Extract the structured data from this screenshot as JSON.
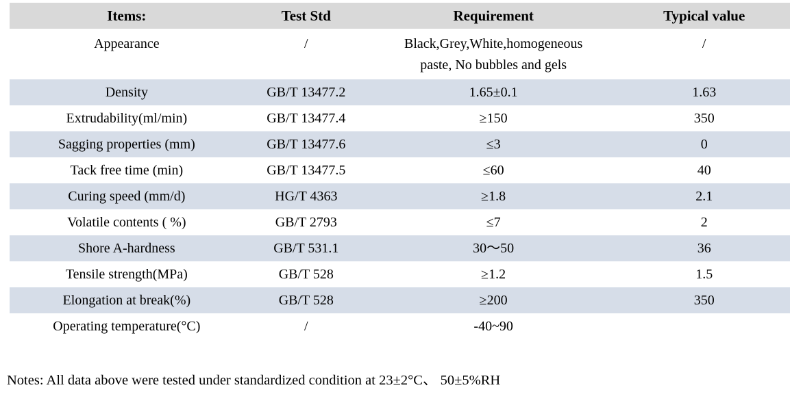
{
  "table": {
    "columns": [
      "Items:",
      "Test Std",
      "Requirement",
      "Typical value"
    ],
    "rows": [
      {
        "item": "Appearance",
        "test_std": "/",
        "requirement": "Black,Grey,White,homogeneous\npaste, No bubbles and gels",
        "typical_value": "/"
      },
      {
        "item": "Density",
        "test_std": "GB/T 13477.2",
        "requirement": "1.65±0.1",
        "typical_value": "1.63"
      },
      {
        "item": "Extrudability(ml/min)",
        "test_std": "GB/T 13477.4",
        "requirement": "≥150",
        "typical_value": "350"
      },
      {
        "item": "Sagging properties (mm)",
        "test_std": "GB/T 13477.6",
        "requirement": "≤3",
        "typical_value": "0"
      },
      {
        "item": "Tack free time (min)",
        "test_std": "GB/T 13477.5",
        "requirement": "≤60",
        "typical_value": "40"
      },
      {
        "item": "Curing speed (mm/d)",
        "test_std": "HG/T 4363",
        "requirement": "≥1.8",
        "typical_value": "2.1"
      },
      {
        "item": "Volatile contents ( %)",
        "test_std": "GB/T 2793",
        "requirement": "≤7",
        "typical_value": "2"
      },
      {
        "item": "Shore A-hardness",
        "test_std": "GB/T 531.1",
        "requirement": "30～50",
        "typical_value": "36"
      },
      {
        "item": "Tensile strength(MPa)",
        "test_std": "GB/T 528",
        "requirement": "≥1.2",
        "typical_value": "1.5"
      },
      {
        "item": "Elongation at break(%)",
        "test_std": "GB/T 528",
        "requirement": "≥200",
        "typical_value": "350"
      },
      {
        "item": "Operating temperature(°C)",
        "test_std": "/",
        "requirement": "-40~90",
        "typical_value": ""
      }
    ],
    "colors": {
      "header_bg": "#d9d9d9",
      "shaded_row_bg": "#d6dde8"
    }
  },
  "notes": "Notes: All data above were tested under standardized condition at 23±2°C、 50±5%RH"
}
